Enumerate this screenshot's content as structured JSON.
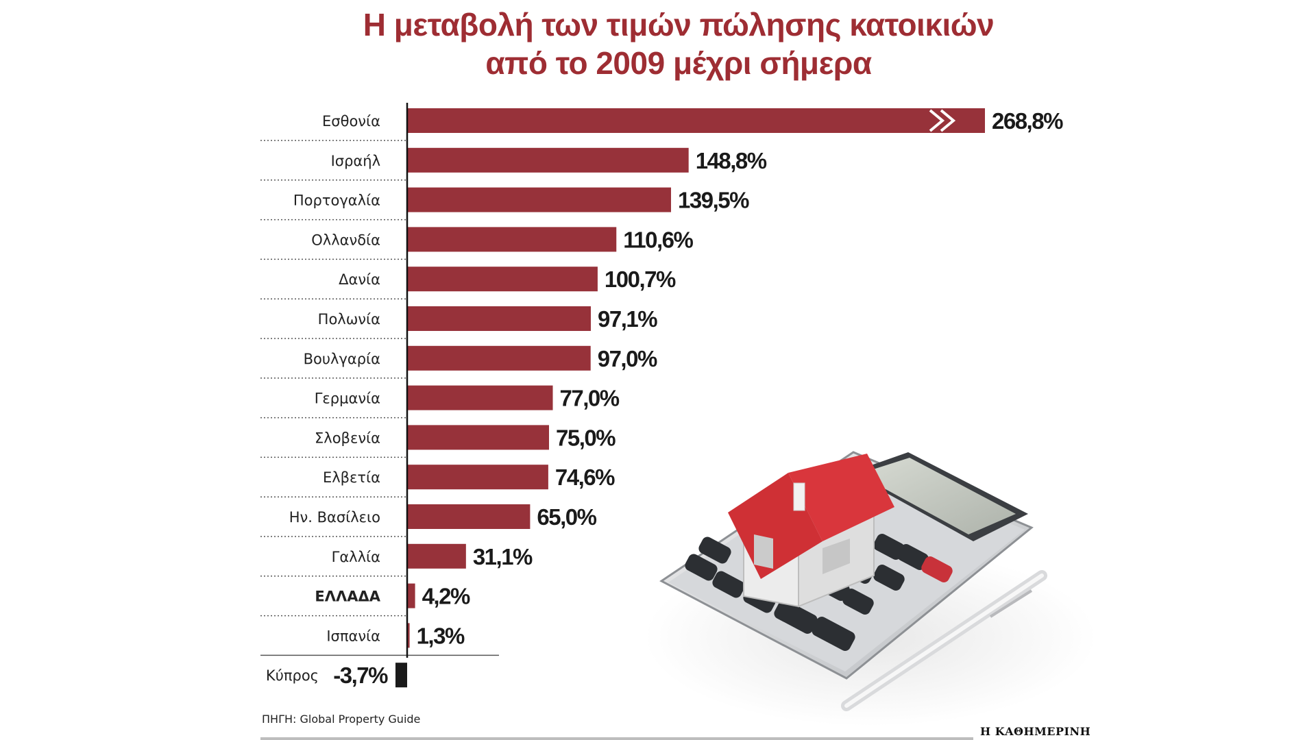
{
  "chart_data": {
    "type": "bar",
    "orientation": "horizontal",
    "title": "Η μεταβολή των τιμών πώλησης κατοικιών από το 2009 μέχρι σήμερα",
    "title_lines": [
      "Η μεταβολή των τιμών πώλησης κατοικιών",
      "από το 2009 μέχρι σήμερα"
    ],
    "categories": [
      "Εσθονία",
      "Ισραήλ",
      "Πορτογαλία",
      "Ολλανδία",
      "Δανία",
      "Πολωνία",
      "Βουλγαρία",
      "Γερμανία",
      "Σλοβενία",
      "Ελβετία",
      "Ην. Βασίλειο",
      "Γαλλία",
      "ΕΛΛΑΔΑ",
      "Ισπανία",
      "Κύπρος"
    ],
    "values": [
      268.8,
      148.8,
      139.5,
      110.6,
      100.7,
      97.1,
      97.0,
      77.0,
      75.0,
      74.6,
      65.0,
      31.1,
      4.2,
      1.3,
      -3.7
    ],
    "value_labels": [
      "268,8%",
      "148,8%",
      "139,5%",
      "110,6%",
      "100,7%",
      "97,1%",
      "97,0%",
      "77,0%",
      "75,0%",
      "74,6%",
      "65,0%",
      "31,1%",
      "4,2%",
      "1,3%",
      "-3,7%"
    ],
    "highlight": "ΕΛΛΑΔΑ",
    "truncated_bar": "Εσθονία",
    "bar_color": "#97323a",
    "negative_bar_color": "#1a1a1a",
    "grid": false,
    "legend": "none"
  },
  "source": "ΠΗΓΗ: Global Property Guide",
  "brand": "Η ΚΑΘΗΜΕΡΙΝΗ",
  "colors": {
    "title": "#9e2d33",
    "bar": "#97323a",
    "negative": "#1a1a1a"
  },
  "illustration": {
    "description_icon": "calculator-with-house-icon"
  }
}
